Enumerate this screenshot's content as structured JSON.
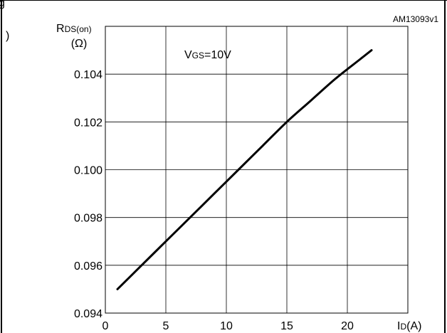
{
  "header": {
    "fragment_left": "g",
    "fragment_side": ")"
  },
  "figure_id": "AM13093v1",
  "chart_data": {
    "type": "line",
    "title": "",
    "annotation": "VGS=10V",
    "annotation_parts": {
      "main": "V",
      "sub": "GS",
      "rest": "=10V"
    },
    "ylabel": {
      "main": "R",
      "sub": "DS(on)",
      "unit": "(Ω)"
    },
    "xlabel": {
      "main": "I",
      "sub": "D",
      "unit": "(A)"
    },
    "xlim": [
      0,
      25
    ],
    "ylim": [
      0.094,
      0.106
    ],
    "x_ticks": [
      0,
      5,
      10,
      15,
      20
    ],
    "y_ticks": [
      "0.094",
      "0.096",
      "0.098",
      "0.100",
      "0.102",
      "0.104"
    ],
    "grid": true,
    "series": [
      {
        "x": [
          1,
          3,
          5,
          7,
          9,
          11,
          13,
          15,
          17,
          19,
          21,
          22
        ],
        "y": [
          0.095,
          0.096,
          0.097,
          0.098,
          0.099,
          0.1,
          0.101,
          0.102,
          0.1029,
          0.1038,
          0.1046,
          0.105
        ]
      }
    ],
    "line_color": "#000000"
  }
}
